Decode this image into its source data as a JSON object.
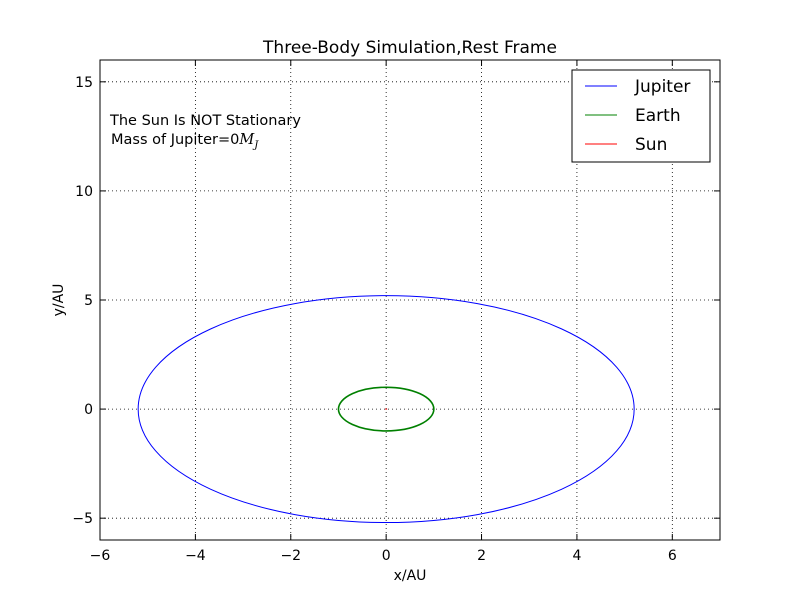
{
  "chart_data": {
    "type": "line",
    "title": "Three-Body Simulation,Rest Frame",
    "xlabel": "x/AU",
    "ylabel": "y/AU",
    "xlim": [
      -6,
      7
    ],
    "ylim": [
      -6,
      16
    ],
    "xticks": [
      -6,
      -4,
      -2,
      0,
      2,
      4,
      6
    ],
    "xtick_labels": [
      "−6",
      "−4",
      "−2",
      "0",
      "2",
      "4",
      "6"
    ],
    "yticks": [
      -5,
      0,
      5,
      10,
      15
    ],
    "ytick_labels": [
      "−5",
      "0",
      "5",
      "10",
      "15"
    ],
    "grid": true,
    "legend_position": "top-right",
    "annotations": {
      "line1": "The Sun Is NOT Stationary",
      "line2_text": "Mass of Jupiter=0",
      "line2_math": "M",
      "line2_math_sub": "J"
    },
    "series": [
      {
        "name": "Jupiter",
        "color": "#0000ff",
        "shape": "ellipse",
        "center": [
          0,
          0
        ],
        "semi_axes": [
          5.2,
          5.2
        ]
      },
      {
        "name": "Earth",
        "color": "#008000",
        "shape": "ellipse",
        "center": [
          0,
          0
        ],
        "semi_axes": [
          1.0,
          1.0
        ]
      },
      {
        "name": "Sun",
        "color": "#ff0000",
        "shape": "point",
        "center": [
          0,
          0
        ]
      }
    ]
  }
}
